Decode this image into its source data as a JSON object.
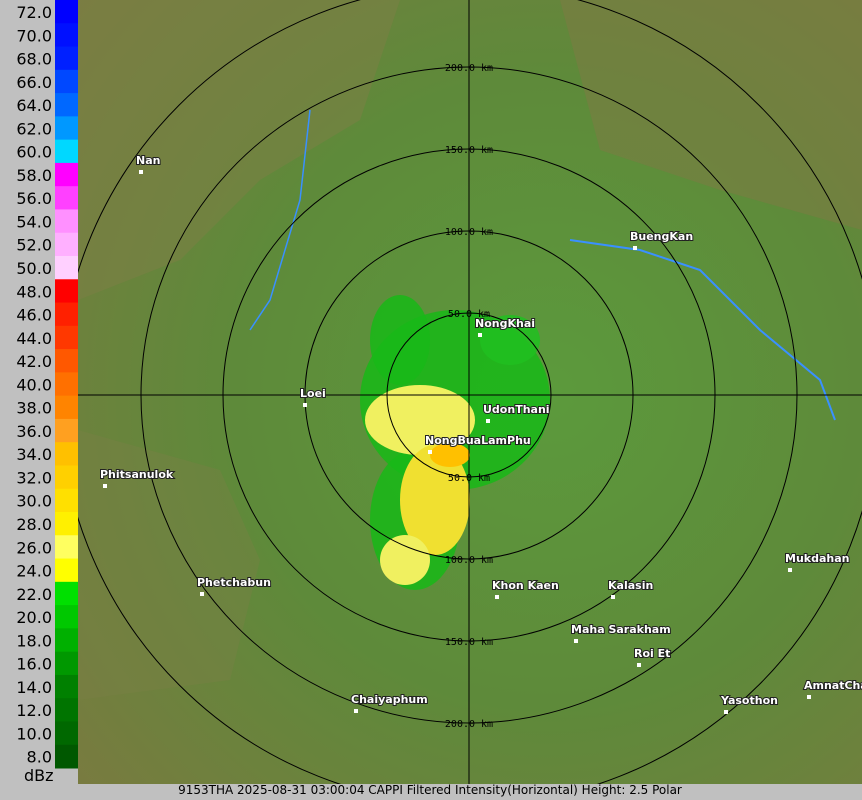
{
  "legend": {
    "unit": "dBz",
    "entries": [
      {
        "label": "72.0",
        "color": "#0000ff"
      },
      {
        "label": "70.0",
        "color": "#0010ff"
      },
      {
        "label": "68.0",
        "color": "#0020ff"
      },
      {
        "label": "66.0",
        "color": "#0048ff"
      },
      {
        "label": "64.0",
        "color": "#0068ff"
      },
      {
        "label": "62.0",
        "color": "#0098ff"
      },
      {
        "label": "60.0",
        "color": "#00d8ff"
      },
      {
        "label": "58.0",
        "color": "#ff00ff"
      },
      {
        "label": "56.0",
        "color": "#ff40ff"
      },
      {
        "label": "54.0",
        "color": "#ff90ff"
      },
      {
        "label": "52.0",
        "color": "#ffb0ff"
      },
      {
        "label": "50.0",
        "color": "#ffd0ff"
      },
      {
        "label": "48.0",
        "color": "#ff0000"
      },
      {
        "label": "46.0",
        "color": "#ff2000"
      },
      {
        "label": "44.0",
        "color": "#ff3800"
      },
      {
        "label": "42.0",
        "color": "#ff5800"
      },
      {
        "label": "40.0",
        "color": "#ff7000"
      },
      {
        "label": "38.0",
        "color": "#ff8400"
      },
      {
        "label": "36.0",
        "color": "#ffa020"
      },
      {
        "label": "34.0",
        "color": "#ffc000"
      },
      {
        "label": "32.0",
        "color": "#ffd000"
      },
      {
        "label": "30.0",
        "color": "#ffe000"
      },
      {
        "label": "28.0",
        "color": "#fff000"
      },
      {
        "label": "26.0",
        "color": "#ffff60"
      },
      {
        "label": "24.0",
        "color": "#ffff00"
      },
      {
        "label": "22.0",
        "color": "#00e000"
      },
      {
        "label": "20.0",
        "color": "#00c800"
      },
      {
        "label": "18.0",
        "color": "#00b000"
      },
      {
        "label": "16.0",
        "color": "#009800"
      },
      {
        "label": "14.0",
        "color": "#008000"
      },
      {
        "label": "12.0",
        "color": "#007400"
      },
      {
        "label": "10.0",
        "color": "#006800"
      },
      {
        "label": "8.0",
        "color": "#005800"
      }
    ]
  },
  "range_rings": [
    "50.0 km",
    "100.0 km",
    "150.0 km",
    "200.0 km"
  ],
  "cities": [
    "Nan",
    "NongKhai",
    "Loei",
    "UdonThani",
    "NongBuaLamPhu",
    "Phitsanulok",
    "BuengKan",
    "Phetchabun",
    "Khon Kaen",
    "Kalasin",
    "Mukdahan",
    "Maha Sarakham",
    "Roi Et",
    "Chaiyaphum",
    "Yasothon",
    "AmnatCha"
  ],
  "footer": "9153THA 2025-08-31 03:00:04 CAPPI Filtered Intensity(Horizontal)  Height: 2.5 Polar"
}
